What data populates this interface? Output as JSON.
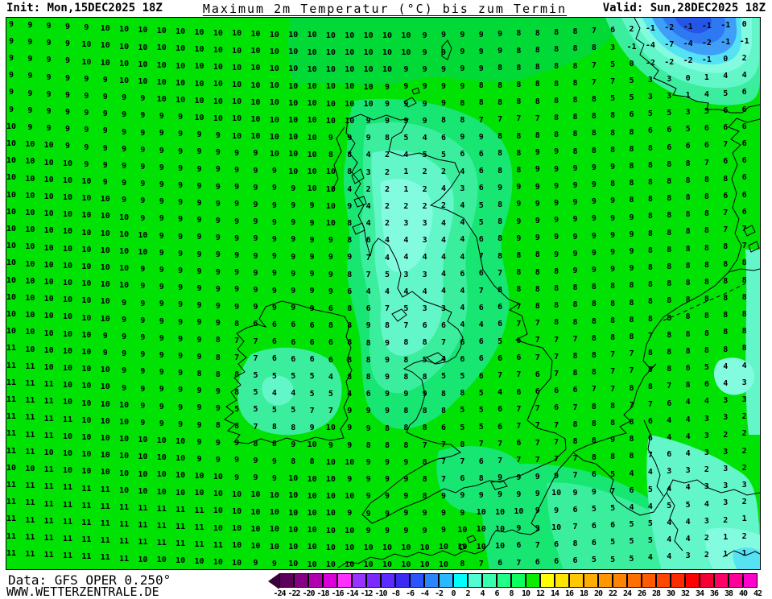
{
  "header": {
    "init": "Init: Mon,15DEC2025 18Z",
    "title": "Maximum 2m Temperatur (°C) bis zum Termin",
    "valid": "Valid: Sun,28DEC2025 18Z"
  },
  "footer": {
    "data_source": "Data: GFS OPER 0.250°",
    "website": "WWW.WETTERZENTRALE.DE"
  },
  "colorbar": {
    "unit": "°C",
    "labels": [
      "-24",
      "-22",
      "-20",
      "-18",
      "-16",
      "-14",
      "-12",
      "-10",
      "-8",
      "-6",
      "-4",
      "-2",
      "0",
      "2",
      "4",
      "6",
      "8",
      "10",
      "12",
      "14",
      "16",
      "18",
      "20",
      "22",
      "24",
      "26",
      "28",
      "30",
      "32",
      "34",
      "36",
      "38",
      "40",
      "42"
    ],
    "segment_colors": [
      "#5c005c",
      "#860086",
      "#b000b0",
      "#da00da",
      "#ff30ff",
      "#9933ff",
      "#7b2bff",
      "#5b2bff",
      "#3b2bf0",
      "#2b55ff",
      "#2b85ff",
      "#2bb8ff",
      "#00ffff",
      "#4fffd3",
      "#38ffae",
      "#21ff86",
      "#0bff5e",
      "#0aec00",
      "#ffff00",
      "#ffe400",
      "#ffc800",
      "#ffad00",
      "#ff9800",
      "#ff8400",
      "#ff7000",
      "#ff5c00",
      "#ff4600",
      "#ff2b00",
      "#ff0000",
      "#f40032",
      "#ff0066",
      "#ff0099",
      "#ff00cc"
    ],
    "left_arrow_color": "#3a0039",
    "right_arrow_color": "#ff00f8"
  },
  "map": {
    "field_palette": {
      "base_green": "#00e204",
      "green2": "#00d936",
      "band_6_8": "#17e673",
      "band_4_6": "#3bee9d",
      "band_2_4": "#62f6c8",
      "band_0_2": "#82fbdf",
      "cyan_m2_0": "#55e2f2",
      "blue_m4_m2": "#3f9ff8",
      "blue_m6_m4": "#2e79f2",
      "blue_m8_m6": "#2356e8",
      "coastline": "#000000"
    },
    "grid_rows": [
      "9 9 9 9 9 10 10 10 10 10 10 10 10 10 10 10 10 10 10 10 10 10 9 9 9 9 9 8 8 8 8 7 6 2 -1 -2 -1 -1 -1 0",
      "9 9 9 9 10 10 10 10 10 10 10 10 10 10 10 10 10 10 10 10 10 10 9 9 9 9 9 8 8 8 8 8 3 -1 -4 -7 -4 -2 -1 -1",
      "9 9 9 9 10 10 10 10 10 10 10 10 10 10 10 10 10 10 10 10 10 9 9 9 9 9 8 8 8 8 8 7 5 0 -2 -2 -2 -1 0 2",
      "9 9 9 9 9 9 10 10 10 10 10 10 10 10 10 10 10 10 10 10 9 9 9 9 9 8 8 8 8 8 8 7 7 5 3 3 0 1 4 4",
      "9 9 9 9 9 9 9 9 10 10 10 10 10 10 10 10 10 10 10 10 9 9 9 9 8 8 8 8 8 8 8 8 5 5 3 3 1 4 5 6",
      "9 9 9 9 9 9 9 9 9 9 10 10 10 10 10 10 10 10 10 9 9 9 9 8 8 7 7 7 7 8 8 8 8 6 5 5 3 5 6 6",
      "10 9 9 9 9 9 9 9 9 9 9 9 10 10 10 10 10 9 9 9 8 5 4 6 9 9 8 8 8 8 8 8 8 8 6 6 5 6 6 6",
      "10 10 10 9 9 9 9 9 9 9 9 9 9 9 10 10 10 8 8 4 2 4 5 5 6 6 8 8 9 9 8 8 8 8 8 6 6 6 7 6",
      "10 10 10 10 9 9 9 9 9 9 9 9 9 9 9 10 10 10 8 3 2 1 2 2 4 6 8 8 9 9 9 9 9 8 8 8 8 7 6 6",
      "10 10 10 10 10 9 9 9 9 9 9 9 9 9 9 9 10 10 4 2 2 1 2 4 3 6 9 9 9 9 9 9 8 8 8 8 8 8 8 6",
      "10 10 10 10 10 10 9 9 9 9 9 9 9 9 9 9 9 10 9 4 2 2 2 2 4 5 8 9 9 9 9 9 9 8 8 8 8 8 6 6",
      "10 10 10 10 10 10 10 9 9 9 9 9 9 9 9 9 9 10 8 4 2 3 3 4 4 5 8 9 9 9 9 9 9 9 8 8 8 8 7 6",
      "10 10 10 10 10 10 10 10 9 9 9 9 9 9 9 9 9 9 8 6 4 4 3 4 4 6 8 9 9 9 9 9 9 9 8 8 8 8 7 7",
      "10 10 10 10 10 10 10 10 9 9 9 9 9 9 9 9 9 9 9 7 4 4 4 4 4 7 8 8 8 9 9 9 9 9 8 8 8 8 8 7",
      "10 10 10 10 10 10 10 9 9 9 9 9 9 9 9 9 9 9 8 7 5 3 3 4 6 6 7 8 8 8 9 9 9 9 8 8 8 8 8 8",
      "10 10 10 10 10 10 10 9 9 9 9 9 9 9 9 9 9 9 6 4 4 4 4 4 4 7 8 8 8 8 8 8 8 8 8 8 8 8 8 8",
      "10 10 10 10 10 10 9 9 9 9 9 9 9 9 9 9 9 6 8 6 7 5 3 3 4 6 6 7 8 8 8 8 8 8 8 8 8 8 8 8",
      "10 10 10 10 10 10 9 9 9 9 9 9 8 6 6 6 6 8 8 9 8 7 6 6 4 4 6 7 7 8 8 8 8 8 8 8 8 8 8 8",
      "10 10 10 10 10 9 9 9 9 9 9 8 7 7 6 6 6 6 8 8 9 8 8 7 6 6 5 6 7 7 7 8 8 8 7 8 8 8 8 8",
      "11 10 10 10 10 9 9 9 9 9 9 8 7 7 6 6 6 6 8 8 9 8 5 4 6 6 6 6 7 7 8 8 7 7 8 8 8 8 8 8",
      "11 11 10 10 10 10 9 9 9 9 8 8 8 5 5 5 5 4 8 8 9 8 8 5 5 6 7 7 6 7 8 8 7 7 8 8 6 5 4 4",
      "11 11 11 10 10 10 9 9 9 9 9 9 8 5 4 4 5 5 4 6 9 9 9 8 8 5 4 6 6 6 6 7 7 8 8 7 8 6 4 3",
      "11 11 11 10 10 10 10 9 9 9 9 9 5 5 5 5 7 7 9 9 9 8 8 8 5 5 6 7 7 6 7 8 8 7 7 6 4 4 3 3",
      "11 11 11 11 10 10 10 9 9 9 9 8 8 7 8 8 9 10 9 9 8 8 8 6 5 5 6 7 7 7 8 8 8 8 6 4 4 3 3 2",
      "11 11 11 10 10 10 10 10 10 10 9 9 9 8 8 9 10 9 9 8 8 8 7 7 8 7 7 6 7 7 8 8 9 8 6 4 4 3 2 2",
      "11 11 10 10 10 10 10 10 10 10 9 9 9 9 9 8 8 10 10 9 9 9 8 7 7 6 7 7 7 7 7 8 8 8 7 6 4 3 3 2",
      "10 10 11 10 10 10 10 10 10 10 10 10 9 9 9 10 10 10 9 9 9 9 8 7 6 8 9 9 9 9 7 6 5 4 4 3 3 2 3 2",
      "11 11 11 11 11 11 10 10 10 10 10 10 10 10 10 10 10 10 10 9 9 9 8 9 9 9 9 9 9 10 9 9 7 6 5 4 4 3 3 3",
      "11 11 11 11 11 11 11 11 11 11 11 10 10 10 10 10 10 10 9 9 9 9 9 9 9 10 10 10 9 9 6 5 5 4 4 5 5 4 3 2",
      "11 11 11 11 11 11 11 11 11 11 11 10 10 10 10 10 10 10 10 9 9 9 9 9 10 10 10 9 9 10 7 6 6 5 5 4 4 3 2 1",
      "11 11 11 11 11 11 11 11 11 11 11 11 10 10 10 10 10 10 10 10 10 10 10 10 10 10 10 6 7 6 8 6 5 5 5 4 4 2 1 2",
      "11 11 11 11 11 11 11 10 10 10 10 10 10 9 9 10 10 10 10 10 10 10 10 10 8 7 6 7 6 6 6 5 5 5 4 4 3 2 1 1"
    ]
  }
}
